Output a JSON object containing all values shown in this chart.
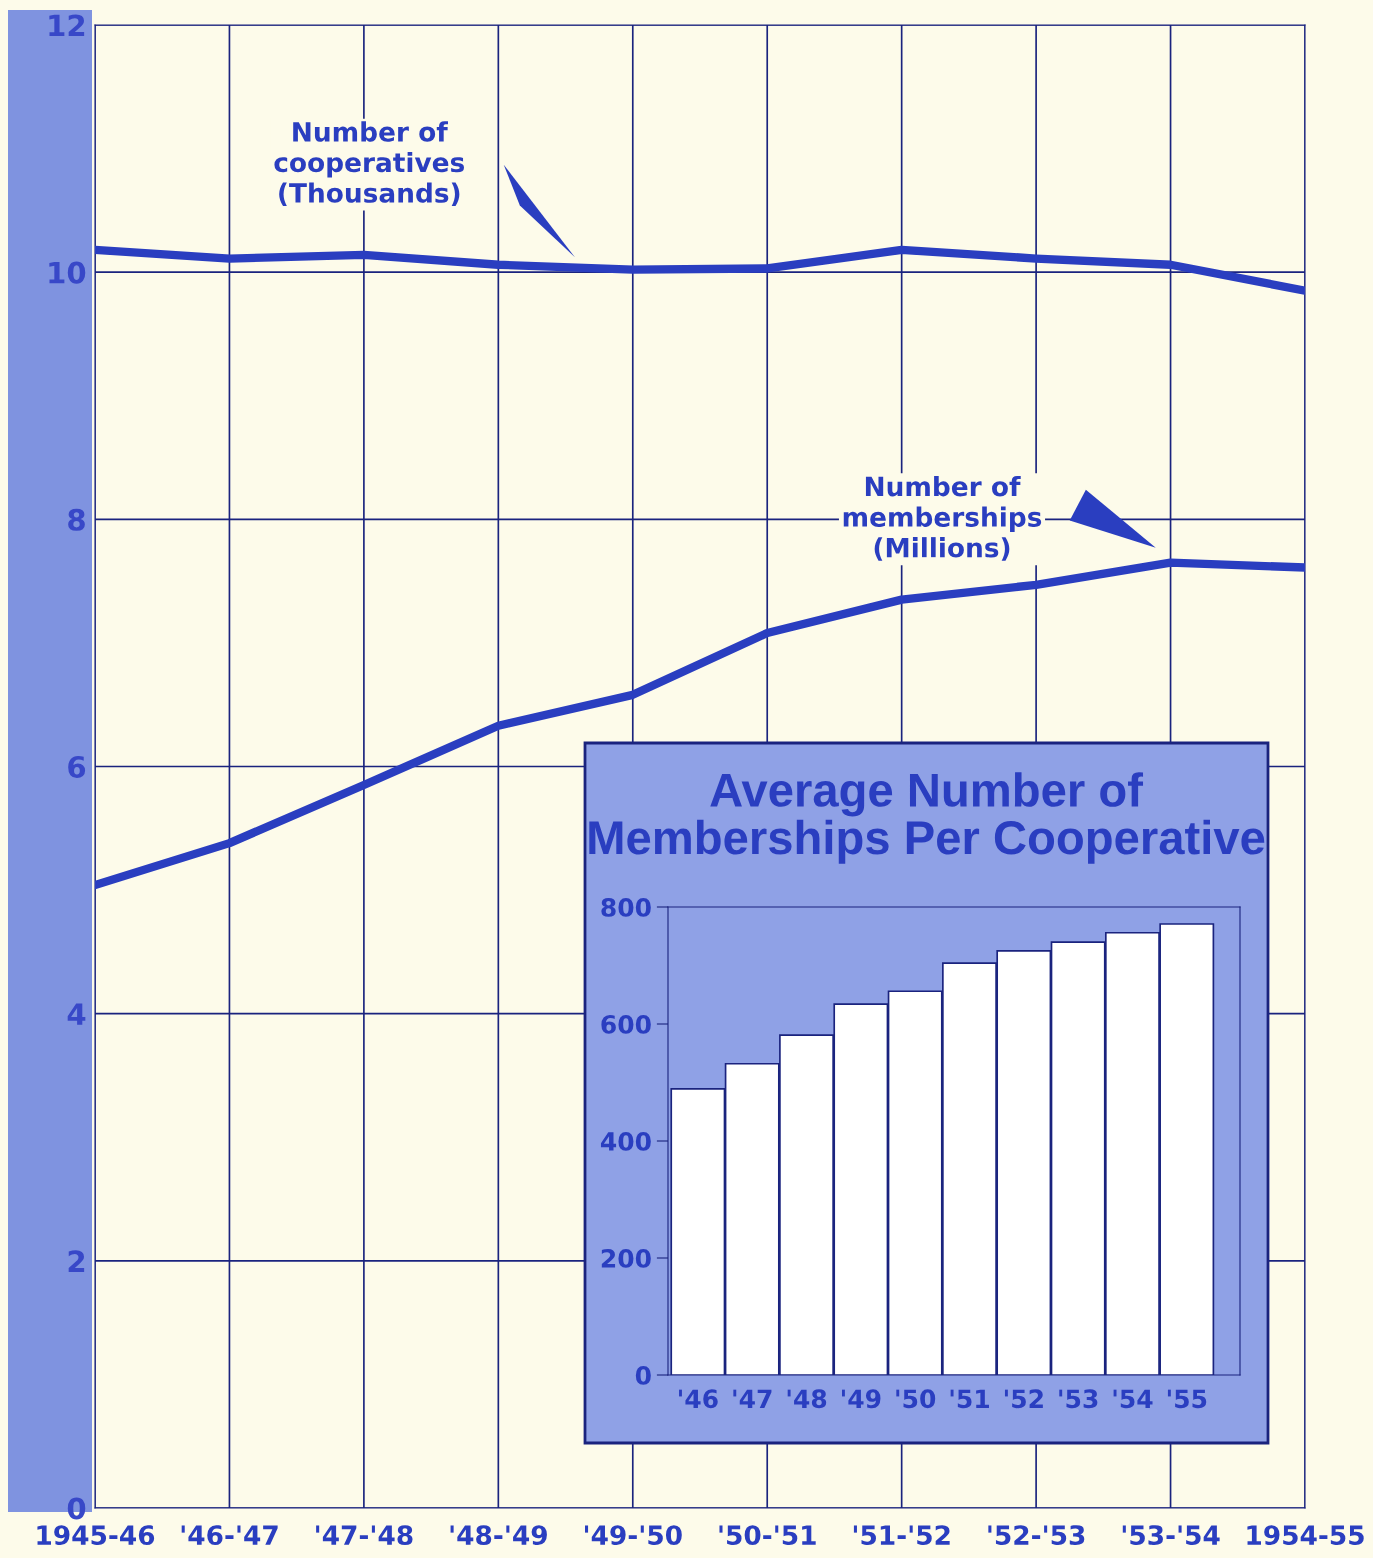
{
  "chart_data": [
    {
      "type": "line",
      "categories": [
        "1945-46",
        "'46-'47",
        "'47-'48",
        "'48-'49",
        "'49-'50",
        "'50-'51",
        "'51-'52",
        "'52-'53",
        "'53-'54",
        "1954-55"
      ],
      "series": [
        {
          "name": "Number of\ncooperatives\n(Thousands)",
          "color": "#2a3ec0",
          "values": [
            10.18,
            10.11,
            10.14,
            10.06,
            10.02,
            10.03,
            10.18,
            10.11,
            10.06,
            9.85
          ]
        },
        {
          "name": "Number of\nmemberships\n(Millions)",
          "color": "#2a3ec0",
          "values": [
            5.04,
            5.38,
            5.85,
            6.33,
            6.58,
            7.08,
            7.35,
            7.47,
            7.65,
            7.61
          ]
        }
      ],
      "ylim": [
        0,
        12
      ],
      "yticks": [
        0,
        2,
        4,
        6,
        8,
        10,
        12
      ],
      "grid": true,
      "marker": "none",
      "line_style": "solid"
    },
    {
      "type": "bar",
      "title": "Average Number of\nMemberships Per Cooperative",
      "categories": [
        "'46",
        "'47",
        "'48",
        "'49",
        "'50",
        "'51",
        "'52",
        "'53",
        "'54",
        "'55"
      ],
      "values": [
        489,
        532,
        581,
        634,
        656,
        704,
        725,
        740,
        756,
        771
      ],
      "color": "#ffffff",
      "ylim": [
        0,
        800
      ],
      "yticks": [
        0,
        200,
        400,
        600,
        800
      ],
      "grid": false
    }
  ]
}
